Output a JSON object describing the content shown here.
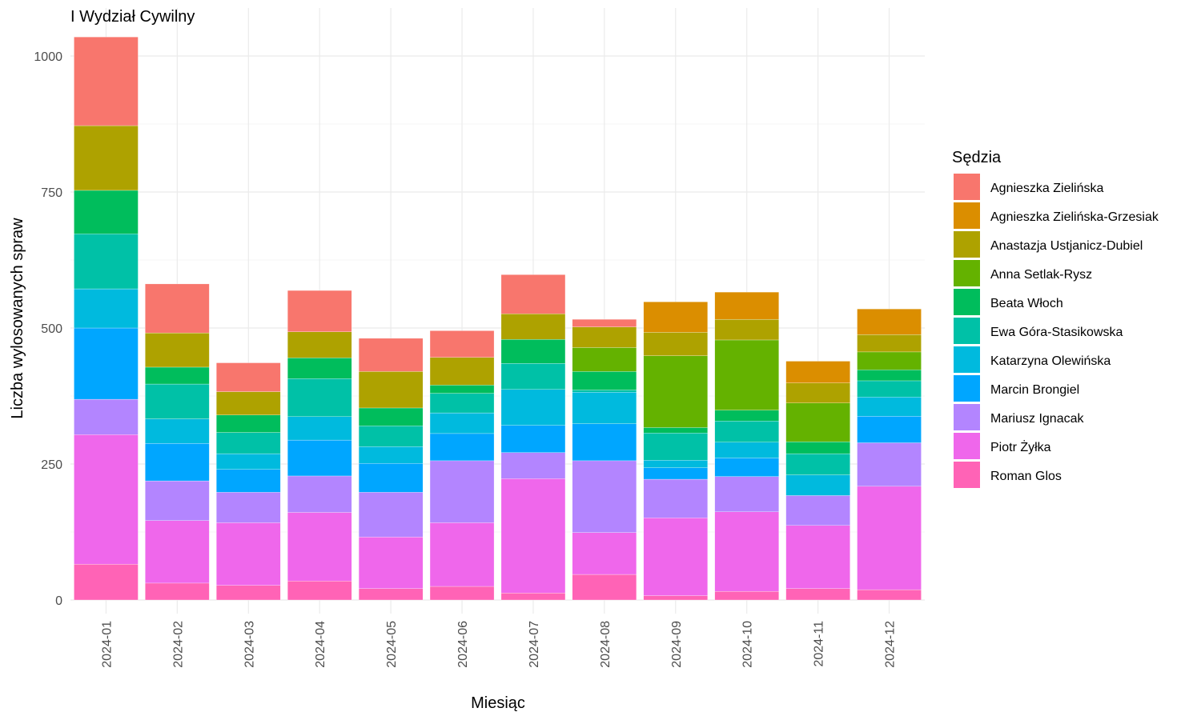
{
  "chart_data": {
    "type": "bar",
    "stacked": true,
    "title": "I Wydział Cywilny",
    "xlabel": "Miesiąc",
    "ylabel": "Liczba wylosowanych spraw",
    "ylim": [
      0,
      1050
    ],
    "yticks": [
      0,
      250,
      500,
      750,
      1000
    ],
    "grid": true,
    "legend": {
      "title": "Sędzia",
      "position": "right"
    },
    "categories": [
      "2024-01",
      "2024-02",
      "2024-03",
      "2024-04",
      "2024-05",
      "2024-06",
      "2024-07",
      "2024-08",
      "2024-09",
      "2024-10",
      "2024-11",
      "2024-12"
    ],
    "series": [
      {
        "name": "Agnieszka Zielińska",
        "color": "#F8766D",
        "values": [
          163,
          90,
          53,
          76,
          61,
          49,
          72,
          14,
          0,
          0,
          0,
          0
        ]
      },
      {
        "name": "Agnieszka Zielińska-Grzesiak",
        "color": "#DB8E00",
        "values": [
          0,
          0,
          0,
          0,
          0,
          0,
          0,
          0,
          56,
          50,
          40,
          47
        ]
      },
      {
        "name": "Anastazja Ustjanicz-Dubiel",
        "color": "#AEA200",
        "values": [
          119,
          63,
          43,
          48,
          67,
          51,
          47,
          38,
          43,
          38,
          37,
          32
        ]
      },
      {
        "name": "Anna Setlak-Rysz",
        "color": "#64B200",
        "values": [
          0,
          0,
          0,
          0,
          0,
          0,
          0,
          44,
          132,
          129,
          71,
          33
        ]
      },
      {
        "name": "Beata Włoch",
        "color": "#00BD5C",
        "values": [
          80,
          31,
          32,
          38,
          33,
          15,
          44,
          34,
          10,
          20,
          22,
          20
        ]
      },
      {
        "name": "Ewa Góra-Stasikowska",
        "color": "#00C1A7",
        "values": [
          101,
          64,
          39,
          70,
          38,
          36,
          48,
          4,
          50,
          39,
          39,
          30
        ]
      },
      {
        "name": "Katarzyna Olewińska",
        "color": "#00BADE",
        "values": [
          72,
          45,
          29,
          43,
          31,
          38,
          66,
          58,
          14,
          29,
          38,
          35
        ]
      },
      {
        "name": "Marcin Brongiel",
        "color": "#00A6FF",
        "values": [
          131,
          69,
          42,
          66,
          53,
          50,
          50,
          68,
          21,
          34,
          0,
          49
        ]
      },
      {
        "name": "Mariusz Ignacak",
        "color": "#B385FF",
        "values": [
          65,
          73,
          56,
          67,
          82,
          114,
          48,
          132,
          71,
          65,
          55,
          80
        ]
      },
      {
        "name": "Piotr Żyłka",
        "color": "#EF67EB",
        "values": [
          238,
          115,
          115,
          126,
          95,
          117,
          210,
          77,
          143,
          146,
          116,
          190
        ]
      },
      {
        "name": "Roman Glos",
        "color": "#FF63B6",
        "values": [
          66,
          31,
          27,
          35,
          21,
          25,
          13,
          47,
          8,
          16,
          21,
          19
        ]
      }
    ]
  }
}
